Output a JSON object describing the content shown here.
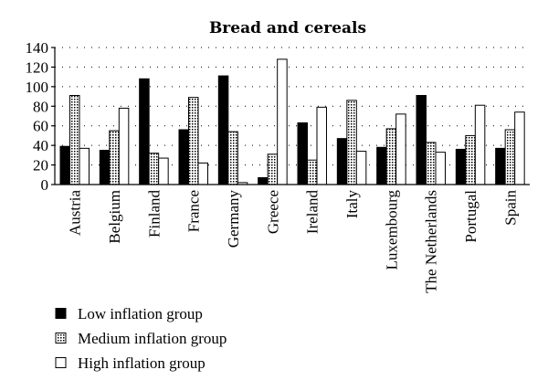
{
  "chart_data": {
    "type": "bar",
    "title": "Bread and cereals",
    "xlabel": "",
    "ylabel": "",
    "ylim": [
      0,
      140
    ],
    "yticks": [
      0,
      20,
      40,
      60,
      80,
      100,
      120,
      140
    ],
    "grid": true,
    "legend_position": "bottom-left",
    "categories": [
      "Austria",
      "Belgium",
      "Finland",
      "France",
      "Germany",
      "Greece",
      "Ireland",
      "Italy",
      "Luxembourg",
      "The Netherlands",
      "Portugal",
      "Spain"
    ],
    "series": [
      {
        "name": "Low inflation group",
        "style": "solid",
        "values": [
          39,
          35,
          108,
          56,
          111,
          7,
          63,
          47,
          38,
          91,
          36,
          37
        ]
      },
      {
        "name": "Medium inflation group",
        "style": "dotted",
        "values": [
          91,
          55,
          32,
          89,
          54,
          31,
          25,
          86,
          57,
          43,
          50,
          56
        ]
      },
      {
        "name": "High inflation group",
        "style": "hollow",
        "values": [
          37,
          78,
          27,
          22,
          2,
          128,
          79,
          34,
          72,
          33,
          81,
          74
        ]
      }
    ]
  }
}
